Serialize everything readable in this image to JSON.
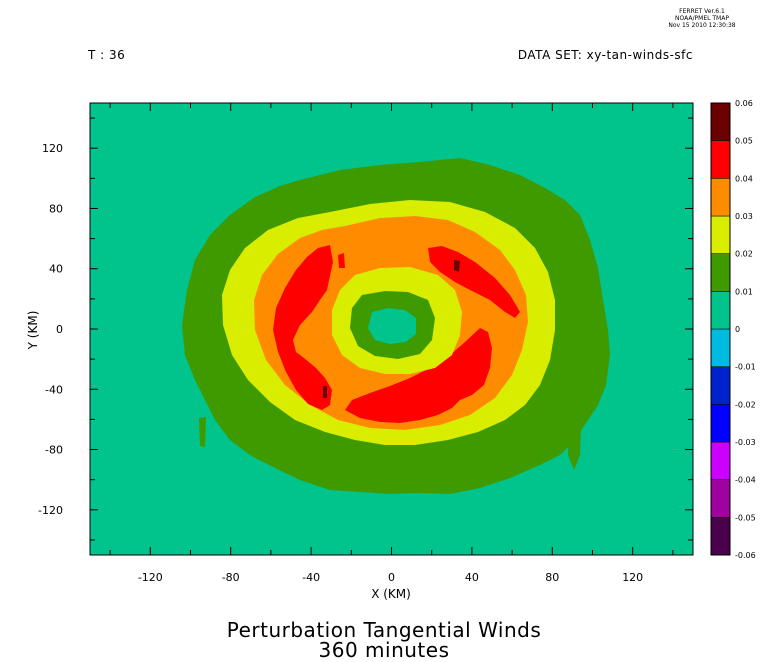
{
  "header": {
    "ferret_line1": "FERRET  Ver.6.1",
    "ferret_line2": "NOAA/PMEL TMAP",
    "ferret_line3": "Nov 15 2010 12:30:38",
    "time_label": "T : 36",
    "dataset_label": "DATA SET: xy-tan-winds-sfc"
  },
  "chart_data": {
    "type": "heatmap",
    "title": "Perturbation Tangential Winds",
    "subtitle": "360 minutes",
    "xlabel": "X (KM)",
    "ylabel": "Y (KM)",
    "xlim": [
      -150,
      150
    ],
    "ylim": [
      -150,
      150
    ],
    "xticks": [
      -120,
      -80,
      -40,
      0,
      40,
      80,
      120
    ],
    "yticks": [
      120,
      80,
      40,
      0,
      -40,
      -80,
      -120
    ],
    "grid": false,
    "colorbar": {
      "levels": [
        -0.06,
        -0.05,
        -0.04,
        -0.03,
        -0.02,
        -0.01,
        0,
        0.01,
        0.02,
        0.03,
        0.04,
        0.05,
        0.06
      ],
      "level_labels": [
        "-0.06",
        "-0.05",
        "-0.04",
        "-0.03",
        "-0.02",
        "-0.01",
        "0",
        "0.01",
        "0.02",
        "0.03",
        "0.04",
        "0.05",
        "0.06"
      ],
      "colors": [
        "#4a004a",
        "#a0009f",
        "#cc00ff",
        "#0000ff",
        "#0022cc",
        "#00bbe0",
        "#00c48c",
        "#3f9a00",
        "#d8ed00",
        "#ff8c00",
        "#ff0000",
        "#6b0000"
      ]
    },
    "field": {
      "background_value": 0.005,
      "ring_center_radius_km": 55,
      "peak_value": 0.045,
      "inner_calm_radius_km": 12
    }
  },
  "colors": {
    "band_0_001": "#00c48c",
    "band_001_002": "#3f9a00",
    "band_002_003": "#d8ed00",
    "band_003_004": "#ff8c00",
    "band_004_005": "#ff0000",
    "band_005_006": "#6b0000"
  }
}
